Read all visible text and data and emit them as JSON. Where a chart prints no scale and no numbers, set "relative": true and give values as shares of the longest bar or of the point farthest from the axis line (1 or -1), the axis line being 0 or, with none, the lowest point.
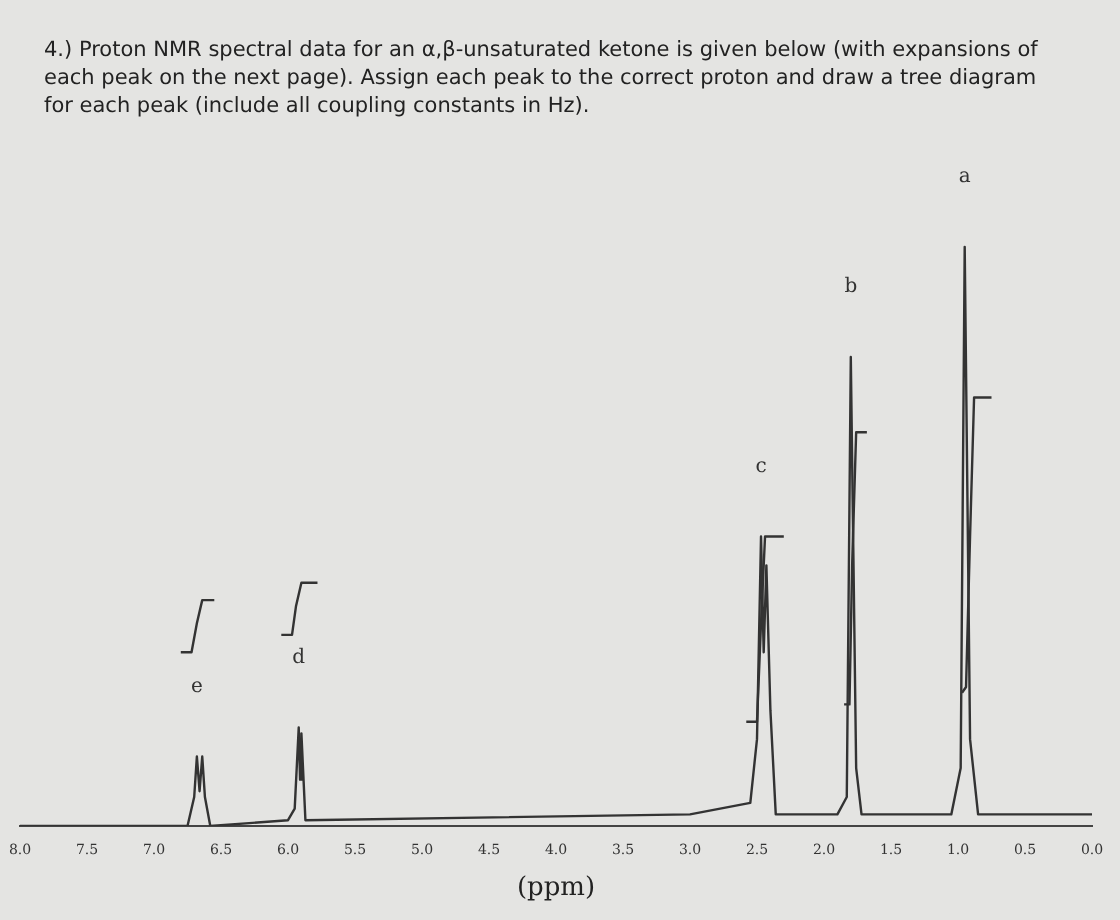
{
  "chart_data": {
    "type": "line",
    "title": "4.) Proton NMR spectral data for an α,β-unsaturated ketone is given below (with expansions of each peak on the next page). Assign each peak to the correct proton and draw a tree diagram for each peak (include all coupling constants in Hz).",
    "xlabel": "(ppm)",
    "relative": true,
    "grid": false,
    "legend": false,
    "marker": "none",
    "line_style": "solid",
    "xlim": [
      8.0,
      0.0
    ],
    "xticks": [
      {
        "value": 8,
        "label": "8.0"
      },
      7.5,
      {
        "value": 7,
        "label": "7.0"
      },
      6.5,
      {
        "value": 6,
        "label": "6.0"
      },
      5.5,
      {
        "value": 5,
        "label": "5.0"
      },
      4.5,
      {
        "value": 4,
        "label": "4.0"
      },
      3.5,
      {
        "value": 3,
        "label": "3.0"
      },
      2.5,
      {
        "value": 2,
        "label": "2.0"
      },
      1.5,
      {
        "value": 1,
        "label": "1.0"
      },
      0.5,
      {
        "value": 0,
        "label": "0.0"
      }
    ],
    "series": [
      {
        "color": "#333333",
        "x": [
          8.0,
          6.75,
          6.7,
          6.68,
          6.66,
          6.64,
          6.62,
          6.58,
          6.0,
          5.95,
          5.92,
          5.91,
          5.9,
          5.87,
          3.0,
          2.55,
          2.5,
          2.47,
          2.45,
          2.43,
          2.4,
          2.36,
          1.9,
          1.83,
          1.8,
          1.76,
          1.72,
          1.05,
          0.98,
          0.95,
          0.91,
          0.85,
          0.0
        ],
        "values": [
          0,
          0,
          0.05,
          0.12,
          0.06,
          0.12,
          0.05,
          0,
          0.01,
          0.03,
          0.17,
          0.08,
          0.16,
          0.01,
          0.02,
          0.04,
          0.15,
          0.5,
          0.3,
          0.45,
          0.2,
          0.02,
          0.02,
          0.05,
          0.81,
          0.1,
          0.02,
          0.02,
          0.1,
          1.0,
          0.15,
          0.02,
          0.02
        ]
      },
      {
        "color": "#333333",
        "x": [
          6.8,
          6.72,
          6.68,
          6.64,
          6.55
        ],
        "values": [
          0.3,
          0.3,
          0.35,
          0.39,
          0.39
        ]
      },
      {
        "color": "#333333",
        "x": [
          6.05,
          5.97,
          5.94,
          5.9,
          5.78
        ],
        "values": [
          0.33,
          0.33,
          0.38,
          0.42,
          0.42
        ]
      },
      {
        "color": "#333333",
        "x": [
          2.58,
          2.5,
          2.47,
          2.44,
          2.3
        ],
        "values": [
          0.18,
          0.18,
          0.35,
          0.5,
          0.5
        ]
      },
      {
        "color": "#333333",
        "x": [
          1.85,
          1.81,
          1.79,
          1.76,
          1.68
        ],
        "values": [
          0.21,
          0.21,
          0.45,
          0.68,
          0.68
        ]
      },
      {
        "color": "#333333",
        "x": [
          0.97,
          0.94,
          0.91,
          0.88,
          0.75
        ],
        "values": [
          0.23,
          0.24,
          0.5,
          0.74,
          0.74
        ]
      }
    ],
    "annotations": [
      {
        "text": "e",
        "x": 6.68,
        "y": 0.12
      },
      {
        "text": "d",
        "x": 5.92,
        "y": 0.17
      },
      {
        "text": "c",
        "x": 2.47,
        "y": 0.5
      },
      {
        "text": "b",
        "x": 1.8,
        "y": 0.81
      },
      {
        "text": "a",
        "x": 0.95,
        "y": 1.0
      }
    ]
  }
}
